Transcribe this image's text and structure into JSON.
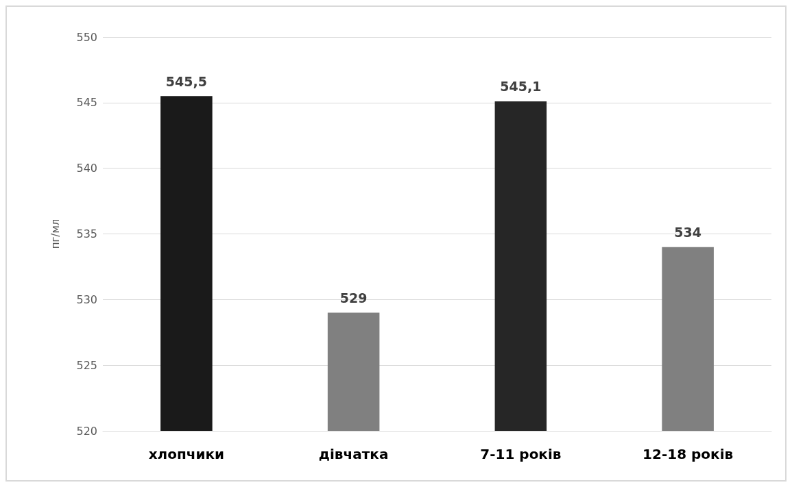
{
  "chart_data": {
    "type": "bar",
    "ylabel": "пг/мл",
    "categories": [
      "хлопчики",
      "дівчатка",
      "7-11 років",
      "12-18 років"
    ],
    "values": [
      545.5,
      529,
      545.1,
      534
    ],
    "value_labels": [
      "545,5",
      "529",
      "545,1",
      "534"
    ],
    "colors": [
      "#1a1a1a",
      "#808080",
      "#262626",
      "#808080"
    ],
    "ylim": [
      520,
      550
    ],
    "yticks": [
      520,
      525,
      530,
      535,
      540,
      545,
      550
    ],
    "grid": "y"
  }
}
